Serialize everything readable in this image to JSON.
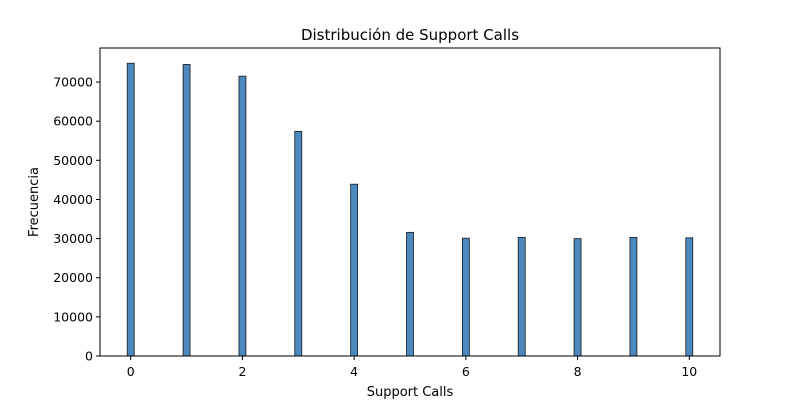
{
  "chart_data": {
    "type": "bar",
    "title": "Distribución de Support Calls",
    "xlabel": "Support Calls",
    "ylabel": "Frecuencia",
    "x": [
      0,
      1,
      2,
      3,
      4,
      5,
      6,
      7,
      8,
      9,
      10
    ],
    "values": [
      74800,
      74500,
      71500,
      57400,
      43900,
      31600,
      30100,
      30300,
      30000,
      30300,
      30200
    ],
    "xlim": [
      -0.55,
      10.55
    ],
    "ylim": [
      0,
      78700
    ],
    "xticks": [
      0,
      2,
      4,
      6,
      8,
      10
    ],
    "xtick_labels": [
      "0",
      "2",
      "4",
      "6",
      "8",
      "10"
    ],
    "yticks": [
      0,
      10000,
      20000,
      30000,
      40000,
      50000,
      60000,
      70000
    ],
    "ytick_labels": [
      "0",
      "10000",
      "20000",
      "30000",
      "40000",
      "50000",
      "60000",
      "70000"
    ],
    "grid": false,
    "bar_color": "#4a88be"
  }
}
